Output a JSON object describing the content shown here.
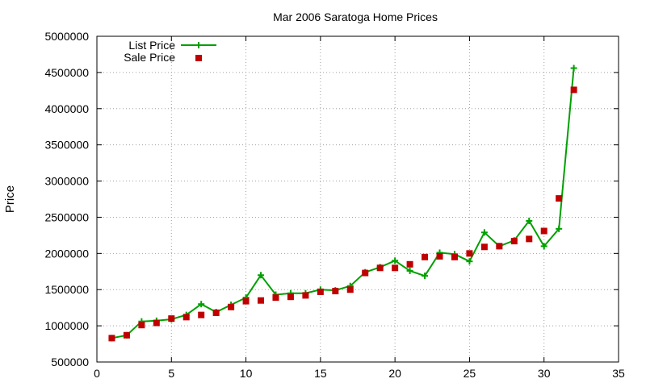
{
  "chart_data": {
    "type": "line",
    "title": "Mar 2006 Saratoga Home Prices",
    "xlabel": "",
    "ylabel": "Price",
    "xlim": [
      0,
      35
    ],
    "ylim": [
      500000,
      5000000
    ],
    "xticks": [
      0,
      5,
      10,
      15,
      20,
      25,
      30,
      35
    ],
    "yticks": [
      500000,
      1000000,
      1500000,
      2000000,
      2500000,
      3000000,
      3500000,
      4000000,
      4500000,
      5000000
    ],
    "grid": true,
    "legend_position": "top-left",
    "colors": {
      "list": "#00a000",
      "sale": "#c00000"
    },
    "series": [
      {
        "name": "List Price",
        "style": "line-with-plus-markers",
        "x": [
          1,
          2,
          3,
          4,
          5,
          6,
          7,
          8,
          9,
          10,
          11,
          12,
          13,
          14,
          15,
          16,
          17,
          18,
          19,
          20,
          21,
          22,
          23,
          24,
          25,
          26,
          27,
          28,
          29,
          30,
          31,
          32
        ],
        "values": [
          830000,
          870000,
          1060000,
          1070000,
          1090000,
          1150000,
          1300000,
          1190000,
          1290000,
          1390000,
          1700000,
          1430000,
          1450000,
          1450000,
          1500000,
          1490000,
          1550000,
          1740000,
          1810000,
          1900000,
          1760000,
          1690000,
          2010000,
          1990000,
          1890000,
          2290000,
          2100000,
          2180000,
          2450000,
          2100000,
          2340000,
          4560000
        ]
      },
      {
        "name": "Sale Price",
        "style": "square-markers",
        "x": [
          1,
          2,
          3,
          4,
          5,
          6,
          7,
          8,
          9,
          10,
          11,
          12,
          13,
          14,
          15,
          16,
          17,
          18,
          19,
          20,
          21,
          22,
          23,
          24,
          25,
          26,
          27,
          28,
          29,
          30,
          31,
          32
        ],
        "values": [
          830000,
          870000,
          1010000,
          1040000,
          1100000,
          1120000,
          1150000,
          1180000,
          1260000,
          1340000,
          1350000,
          1390000,
          1400000,
          1420000,
          1470000,
          1480000,
          1500000,
          1730000,
          1800000,
          1800000,
          1850000,
          1950000,
          1960000,
          1950000,
          2000000,
          2090000,
          2100000,
          2170000,
          2200000,
          2310000,
          2760000,
          4260000
        ]
      }
    ]
  }
}
